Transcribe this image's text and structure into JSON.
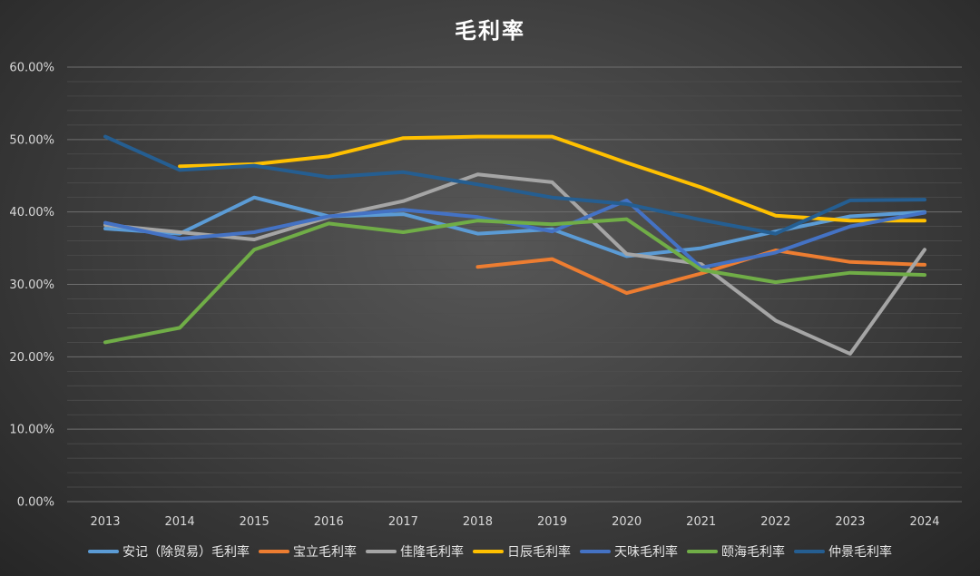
{
  "chart_data": {
    "type": "line",
    "title": "毛利率",
    "xlabel": "",
    "ylabel": "",
    "x": [
      "2013",
      "2014",
      "2015",
      "2016",
      "2017",
      "2018",
      "2019",
      "2020",
      "2021",
      "2022",
      "2023",
      "2024"
    ],
    "y_ticks": [
      "0.00%",
      "10.00%",
      "20.00%",
      "30.00%",
      "40.00%",
      "50.00%",
      "60.00%"
    ],
    "ylim": [
      0,
      60
    ],
    "grid": true,
    "legend_position": "bottom",
    "series": [
      {
        "name": "安记（除贸易）毛利率",
        "color": "#5b9bd5",
        "values": [
          37.7,
          37.0,
          42.0,
          39.4,
          39.7,
          37.0,
          37.6,
          33.9,
          35.0,
          37.3,
          39.4,
          40.0
        ]
      },
      {
        "name": "宝立毛利率",
        "color": "#ed7d31",
        "values": [
          null,
          null,
          null,
          null,
          null,
          32.4,
          33.5,
          28.8,
          31.5,
          34.7,
          33.1,
          32.7
        ]
      },
      {
        "name": "佳隆毛利率",
        "color": "#a5a5a5",
        "values": [
          38.2,
          37.2,
          36.2,
          39.3,
          41.5,
          45.2,
          44.1,
          34.2,
          32.8,
          25.0,
          20.4,
          34.8
        ]
      },
      {
        "name": "日辰毛利率",
        "color": "#ffc000",
        "values": [
          null,
          46.3,
          46.6,
          47.7,
          50.2,
          50.4,
          50.4,
          46.8,
          43.4,
          39.5,
          38.8,
          38.8
        ]
      },
      {
        "name": "天味毛利率",
        "color": "#4472c4",
        "values": [
          38.5,
          36.3,
          37.2,
          39.4,
          40.3,
          39.3,
          37.3,
          41.6,
          32.3,
          34.4,
          38.0,
          39.9
        ]
      },
      {
        "name": "颐海毛利率",
        "color": "#70ad47",
        "values": [
          22.0,
          24.0,
          34.8,
          38.4,
          37.2,
          38.8,
          38.3,
          39.0,
          32.0,
          30.3,
          31.6,
          31.3
        ]
      },
      {
        "name": "仲景毛利率",
        "color": "#255e91",
        "values": [
          50.4,
          45.8,
          46.4,
          44.8,
          45.5,
          43.8,
          42.0,
          41.1,
          38.9,
          37.0,
          41.6,
          41.7
        ]
      }
    ]
  }
}
